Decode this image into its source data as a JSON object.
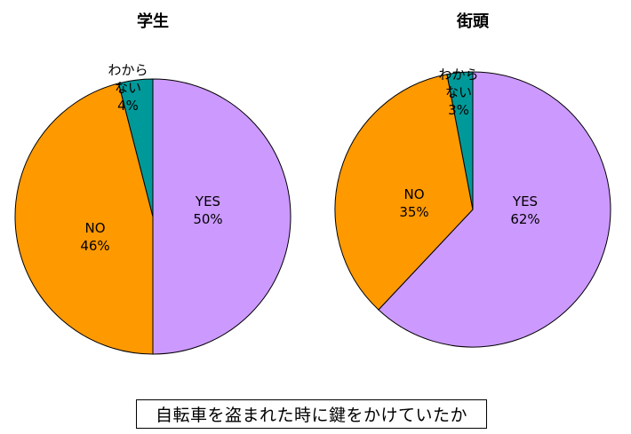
{
  "chart_data": [
    {
      "type": "pie",
      "title": "学生",
      "slices": [
        {
          "label": "YES",
          "value": 50,
          "value_label": "50%",
          "color": "#cc99ff"
        },
        {
          "label": "NO",
          "value": 46,
          "value_label": "46%",
          "color": "#ff9900"
        },
        {
          "label": "わから\nない",
          "value": 4,
          "value_label": "4%",
          "color": "#009999"
        }
      ]
    },
    {
      "type": "pie",
      "title": "街頭",
      "slices": [
        {
          "label": "YES",
          "value": 62,
          "value_label": "62%",
          "color": "#cc99ff"
        },
        {
          "label": "NO",
          "value": 35,
          "value_label": "35%",
          "color": "#ff9900"
        },
        {
          "label": "わから\nない",
          "value": 3,
          "value_label": "3%",
          "color": "#009999"
        }
      ]
    }
  ],
  "caption": "自転車を盗まれた時に鍵をかけていたか"
}
